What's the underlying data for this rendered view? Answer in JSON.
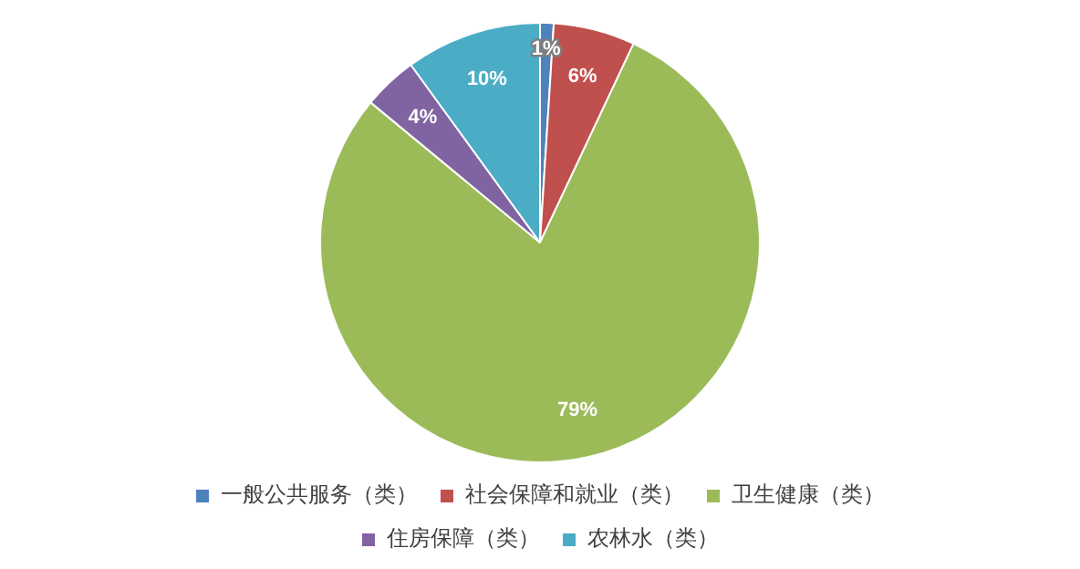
{
  "chart_data": {
    "type": "pie",
    "categories": [
      "一般公共服务（类）",
      "社会保障和就业（类）",
      "卫生健康（类）",
      "住房保障（类）",
      "农林水（类）"
    ],
    "values": [
      1,
      6,
      79,
      4,
      10
    ],
    "colors": [
      "#4f81bd",
      "#c0504d",
      "#9bbb59",
      "#8064a2",
      "#4bacc6"
    ],
    "value_labels": [
      "1%",
      "6%",
      "79%",
      "4%",
      "10%"
    ],
    "legend": "bottom"
  }
}
